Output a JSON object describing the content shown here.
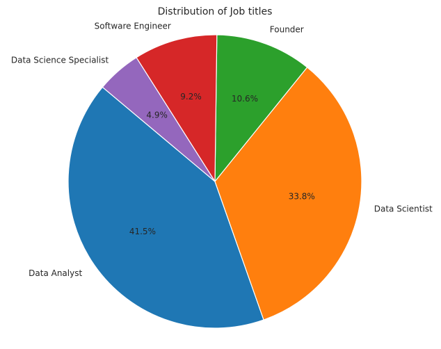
{
  "chart_data": {
    "type": "pie",
    "title": "Distribution of Job titles",
    "slices": [
      {
        "label": "Data Analyst",
        "value": 41.5,
        "pct_label": "41.5%",
        "color": "#1f77b4"
      },
      {
        "label": "Data Scientist",
        "value": 33.8,
        "pct_label": "33.8%",
        "color": "#ff7f0e"
      },
      {
        "label": "Founder",
        "value": 10.6,
        "pct_label": "10.6%",
        "color": "#2ca02c"
      },
      {
        "label": "Software Engineer",
        "value": 9.2,
        "pct_label": "9.2%",
        "color": "#d62728"
      },
      {
        "label": "Data Science Specialist",
        "value": 4.9,
        "pct_label": "4.9%",
        "color": "#9467bd"
      }
    ],
    "start_angle_deg": 140,
    "direction": "counterclockwise",
    "legend": "none"
  }
}
